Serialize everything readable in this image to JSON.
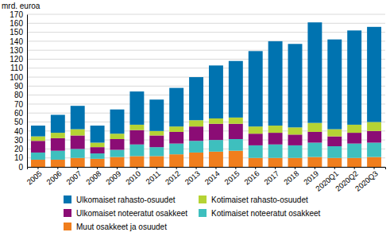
{
  "chart_data": {
    "type": "bar",
    "stacked": true,
    "grid": true,
    "y_label": "mrd. euroa",
    "categories": [
      "2005",
      "2006",
      "2007",
      "2008",
      "2009",
      "2010",
      "2011",
      "2012",
      "2013",
      "2014",
      "2015",
      "2016",
      "2017",
      "2018",
      "2019",
      "2020Q1",
      "2020Q2",
      "2020Q3"
    ],
    "series": [
      {
        "name": "Muut osakkeet ja osuudet",
        "color": "#f07e1d",
        "values": [
          8,
          8,
          10,
          9,
          11,
          12,
          12,
          14,
          16,
          17,
          18,
          10,
          10,
          10,
          11,
          10,
          10,
          11
        ]
      },
      {
        "name": "Kotimaiset noteeratut osakkeet",
        "color": "#3ebfbe",
        "values": [
          8,
          10,
          10,
          6,
          8,
          13,
          10,
          12,
          13,
          13,
          13,
          14,
          15,
          14,
          16,
          13,
          16,
          16
        ]
      },
      {
        "name": "Ulkomaiset noteeratut osakkeet",
        "color": "#8b0c75",
        "values": [
          13,
          14,
          15,
          7,
          12,
          16,
          13,
          13,
          16,
          18,
          17,
          13,
          13,
          12,
          12,
          11,
          12,
          13
        ]
      },
      {
        "name": "Kotimaiset rahasto-osuudet",
        "color": "#b5d334",
        "values": [
          5,
          6,
          7,
          5,
          6,
          6,
          5,
          6,
          7,
          6,
          7,
          8,
          8,
          8,
          10,
          8,
          9,
          10
        ]
      },
      {
        "name": "Ulkomaiset rahasto-osuudet",
        "color": "#0073b0",
        "values": [
          12,
          20,
          26,
          19,
          27,
          37,
          35,
          43,
          48,
          59,
          63,
          84,
          94,
          93,
          112,
          100,
          105,
          106
        ]
      }
    ],
    "ylim": [
      0,
      170
    ],
    "yticks": [
      0,
      10,
      20,
      30,
      40,
      50,
      60,
      70,
      80,
      90,
      100,
      110,
      120,
      130,
      140,
      150,
      160,
      170
    ]
  }
}
